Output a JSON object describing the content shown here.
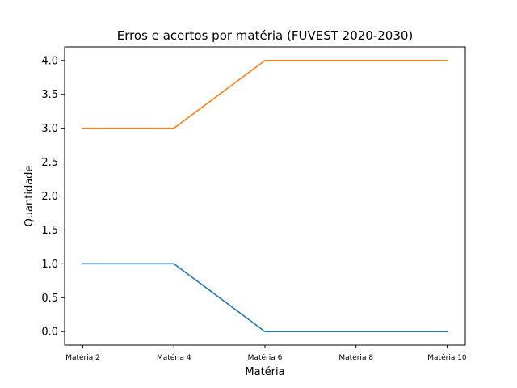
{
  "chart_data": {
    "type": "line",
    "title": "Erros e acertos por matéria (FUVEST 2020-2030)",
    "xlabel": "Matéria",
    "ylabel": "Quantidade",
    "categories": [
      "Matéria 2",
      "Matéria 4",
      "Matéria 6",
      "Matéria 8",
      "Matéria 10"
    ],
    "x": [
      2,
      4,
      6,
      8,
      10
    ],
    "x_data": [
      2,
      4,
      6,
      8,
      10
    ],
    "xlim": [
      1.6,
      10.4
    ],
    "ylim": [
      -0.2,
      4.2
    ],
    "yticks": [
      0.0,
      0.5,
      1.0,
      1.5,
      2.0,
      2.5,
      3.0,
      3.5,
      4.0
    ],
    "ytick_labels": [
      "0.0",
      "0.5",
      "1.0",
      "1.5",
      "2.0",
      "2.5",
      "3.0",
      "3.5",
      "4.0"
    ],
    "grid": false,
    "series": [
      {
        "values": [
          1,
          1,
          0,
          0,
          0
        ],
        "color": "#1f77b4"
      },
      {
        "values": [
          3,
          3,
          4,
          4,
          4
        ],
        "color": "#ff7f0e"
      }
    ]
  }
}
